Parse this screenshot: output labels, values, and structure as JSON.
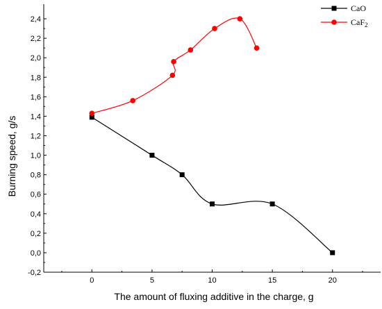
{
  "chart_data": {
    "type": "line",
    "xlabel": "The amount of fluxing additive in the charge, g",
    "ylabel": "Burning speed, g/s",
    "xlim": [
      -4,
      24
    ],
    "ylim": [
      -0.2,
      2.55
    ],
    "x_ticks": [
      0,
      5,
      10,
      15,
      20
    ],
    "x_tick_labels": [
      "0",
      "5",
      "10",
      "15",
      "20"
    ],
    "y_ticks": [
      -0.2,
      0.0,
      0.2,
      0.4,
      0.6,
      0.8,
      1.0,
      1.2,
      1.4,
      1.6,
      1.8,
      2.0,
      2.2,
      2.4
    ],
    "y_tick_labels": [
      "-0,2",
      "0,0",
      "0,2",
      "0,4",
      "0,6",
      "0,8",
      "1,0",
      "1,2",
      "1,4",
      "1,6",
      "1,8",
      "2,0",
      "2,2",
      "2,4"
    ],
    "grid": false,
    "legend_position": "top-right, outside plot",
    "series": [
      {
        "name": "CaO",
        "color": "#000000",
        "marker": "square",
        "x": [
          0,
          5,
          7.5,
          10,
          15,
          20
        ],
        "y": [
          1.39,
          1.0,
          0.8,
          0.5,
          0.5,
          0.0
        ]
      },
      {
        "name": "CaF2",
        "color": "#ff0000",
        "marker": "circle",
        "x": [
          0,
          3.4,
          6.7,
          6.8,
          8.2,
          10.2,
          12.3,
          13.7
        ],
        "y": [
          1.43,
          1.56,
          1.82,
          1.96,
          2.08,
          2.3,
          2.4,
          2.1
        ]
      }
    ]
  }
}
